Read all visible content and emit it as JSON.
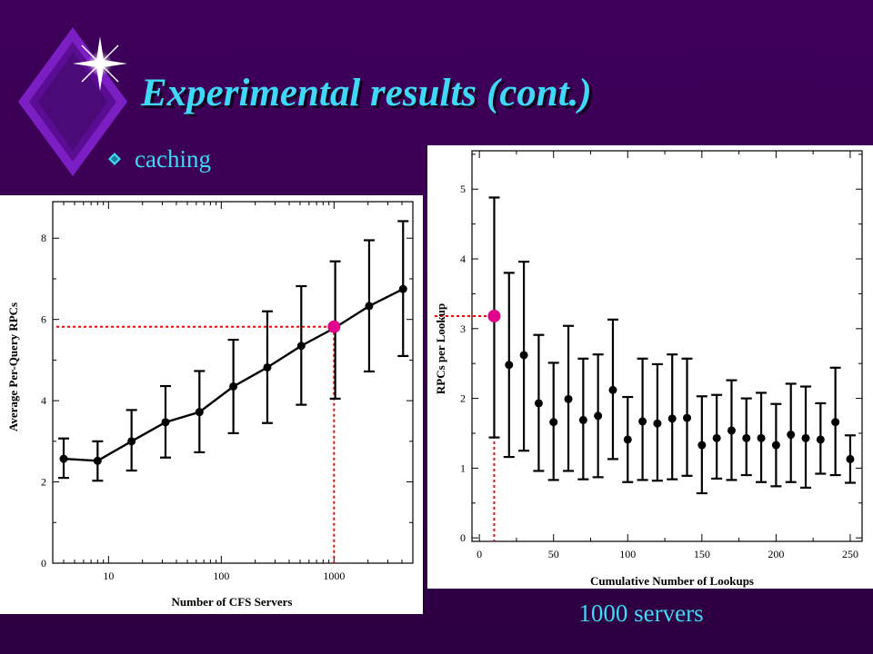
{
  "slide": {
    "title": "Experimental results (cont.)",
    "bullet": "caching",
    "caption": "1000 servers"
  },
  "colors": {
    "background": "#3e005a",
    "title_text": "#3fd8f6",
    "reference_line": "#dd1111",
    "highlight_marker": "#e0008c"
  },
  "chart_data": [
    {
      "type": "line",
      "title": "",
      "xlabel": "Number of CFS Servers",
      "ylabel": "Average Per-Query RPCs",
      "xscale": "log",
      "xlim": [
        3.2,
        5000
      ],
      "ylim": [
        0,
        8.9
      ],
      "xticks": [
        10,
        100,
        1000
      ],
      "yticks": [
        0,
        2,
        4,
        6,
        8
      ],
      "grid": false,
      "series": [
        {
          "x": [
            4,
            8,
            16,
            32,
            64,
            128,
            256,
            512,
            1024,
            2048,
            4096
          ],
          "y": [
            2.57,
            2.52,
            3.0,
            3.47,
            3.72,
            4.35,
            4.82,
            5.35,
            5.8,
            6.33,
            6.75
          ],
          "error_low": [
            2.1,
            2.03,
            2.28,
            2.6,
            2.73,
            3.2,
            3.45,
            3.9,
            4.05,
            4.72,
            5.1
          ],
          "error_high": [
            3.07,
            3.0,
            3.77,
            4.36,
            4.73,
            5.5,
            6.2,
            6.82,
            7.43,
            7.95,
            8.42
          ]
        }
      ],
      "highlight": {
        "x": 1000,
        "y": 5.82
      }
    },
    {
      "type": "scatter",
      "title": "",
      "xlabel": "Cumulative Number of Lookups",
      "ylabel": "RPCs per Lookup",
      "xlim": [
        -5,
        258
      ],
      "ylim": [
        -0.05,
        5.55
      ],
      "xticks": [
        0,
        50,
        100,
        150,
        200,
        250
      ],
      "yticks": [
        0,
        1,
        2,
        3,
        4,
        5
      ],
      "grid": false,
      "series": [
        {
          "x": [
            10,
            20,
            30,
            40,
            50,
            60,
            70,
            80,
            90,
            100,
            110,
            120,
            130,
            140,
            150,
            160,
            170,
            180,
            190,
            200,
            210,
            220,
            230,
            240,
            250
          ],
          "y": [
            3.18,
            2.48,
            2.62,
            1.93,
            1.66,
            1.99,
            1.69,
            1.75,
            2.12,
            1.41,
            1.67,
            1.64,
            1.71,
            1.72,
            1.33,
            1.43,
            1.54,
            1.43,
            1.43,
            1.33,
            1.48,
            1.43,
            1.41,
            1.66,
            1.13
          ],
          "error_low": [
            1.44,
            1.16,
            1.25,
            0.96,
            0.83,
            0.96,
            0.84,
            0.87,
            1.13,
            0.8,
            0.83,
            0.82,
            0.84,
            0.89,
            0.64,
            0.85,
            0.83,
            0.9,
            0.8,
            0.74,
            0.8,
            0.72,
            0.92,
            0.9,
            0.79
          ],
          "error_high": [
            4.88,
            3.8,
            3.96,
            2.91,
            2.51,
            3.04,
            2.57,
            2.63,
            3.13,
            2.02,
            2.57,
            2.49,
            2.63,
            2.57,
            2.03,
            2.05,
            2.26,
            2.0,
            2.08,
            1.92,
            2.21,
            2.17,
            1.93,
            2.44,
            1.47
          ]
        }
      ],
      "highlight": {
        "x": 10,
        "y": 3.18
      }
    }
  ]
}
